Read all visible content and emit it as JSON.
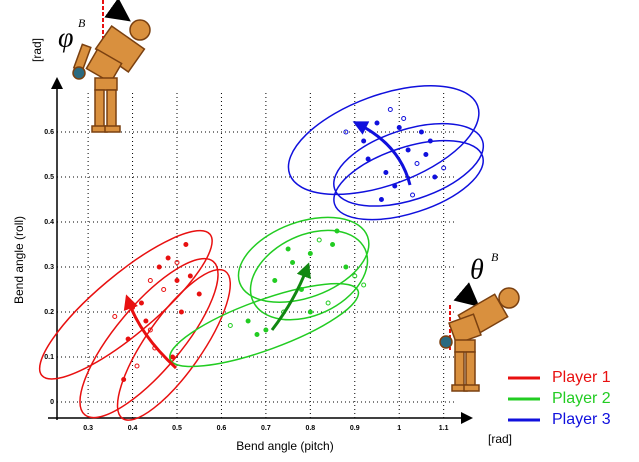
{
  "chart_data": {
    "type": "scatter",
    "x_label": "Bend angle (pitch)",
    "y_label": "Bend angle (roll)",
    "x_unit": "[rad]",
    "y_unit": "[rad]",
    "annotations": {
      "phi": "φ",
      "phi_sup": "B",
      "theta": "θ",
      "theta_sup": "B"
    },
    "xlim": [
      0.23,
      1.13
    ],
    "ylim": [
      -0.04,
      0.72
    ],
    "xticks": [
      0.3,
      0.4,
      0.5,
      0.6,
      0.7,
      0.8,
      0.9,
      1,
      1.1
    ],
    "yticks": [
      0,
      0.1,
      0.2,
      0.3,
      0.4,
      0.5,
      0.6
    ],
    "grid": true,
    "legend": "lower right",
    "series": [
      {
        "name": "Player 1",
        "color": "#e81010",
        "x": [
          0.36,
          0.4,
          0.42,
          0.44,
          0.46,
          0.48,
          0.5,
          0.52,
          0.53,
          0.47,
          0.43,
          0.39,
          0.45,
          0.51,
          0.49,
          0.41,
          0.55,
          0.38,
          0.44,
          0.5
        ],
        "values": [
          0.19,
          0.21,
          0.22,
          0.27,
          0.3,
          0.32,
          0.31,
          0.35,
          0.28,
          0.25,
          0.18,
          0.14,
          0.12,
          0.2,
          0.1,
          0.08,
          0.24,
          0.05,
          0.16,
          0.27
        ],
        "ellipses": [
          {
            "cx": 0.385,
            "cy": 0.216,
            "rx": 0.247,
            "ry": 0.067,
            "angle": -40
          },
          {
            "cx": 0.437,
            "cy": 0.142,
            "rx": 0.225,
            "ry": 0.074,
            "angle": -50
          },
          {
            "cx": 0.493,
            "cy": 0.127,
            "rx": 0.202,
            "ry": 0.063,
            "angle": -55
          }
        ]
      },
      {
        "name": "Player 2",
        "color": "#22cc22",
        "x": [
          0.62,
          0.66,
          0.7,
          0.74,
          0.76,
          0.8,
          0.82,
          0.85,
          0.88,
          0.9,
          0.78,
          0.72,
          0.84,
          0.8,
          0.68,
          0.92,
          0.86,
          0.75
        ],
        "values": [
          0.17,
          0.18,
          0.16,
          0.2,
          0.31,
          0.33,
          0.36,
          0.35,
          0.3,
          0.28,
          0.25,
          0.27,
          0.22,
          0.2,
          0.15,
          0.26,
          0.38,
          0.34
        ],
        "ellipses": [
          {
            "cx": 0.696,
            "cy": 0.171,
            "rx": 0.225,
            "ry": 0.056,
            "angle": -20
          },
          {
            "cx": 0.785,
            "cy": 0.316,
            "rx": 0.153,
            "ry": 0.085,
            "angle": -20
          },
          {
            "cx": 0.797,
            "cy": 0.282,
            "rx": 0.139,
            "ry": 0.09,
            "angle": -25
          }
        ]
      },
      {
        "name": "Player 3",
        "color": "#1010dd",
        "x": [
          0.88,
          0.92,
          0.95,
          0.98,
          1.0,
          1.02,
          1.04,
          1.06,
          1.08,
          1.1,
          0.96,
          0.99,
          1.03,
          1.07,
          0.93,
          1.01,
          1.05,
          0.97
        ],
        "values": [
          0.6,
          0.58,
          0.62,
          0.65,
          0.61,
          0.56,
          0.53,
          0.55,
          0.5,
          0.52,
          0.45,
          0.48,
          0.46,
          0.58,
          0.54,
          0.63,
          0.6,
          0.51
        ],
        "ellipses": [
          {
            "cx": 0.965,
            "cy": 0.582,
            "rx": 0.225,
            "ry": 0.101,
            "angle": -20
          },
          {
            "cx": 1.021,
            "cy": 0.527,
            "rx": 0.175,
            "ry": 0.079,
            "angle": -18
          },
          {
            "cx": 1.021,
            "cy": 0.493,
            "rx": 0.175,
            "ry": 0.074,
            "angle": -18
          }
        ]
      }
    ]
  }
}
